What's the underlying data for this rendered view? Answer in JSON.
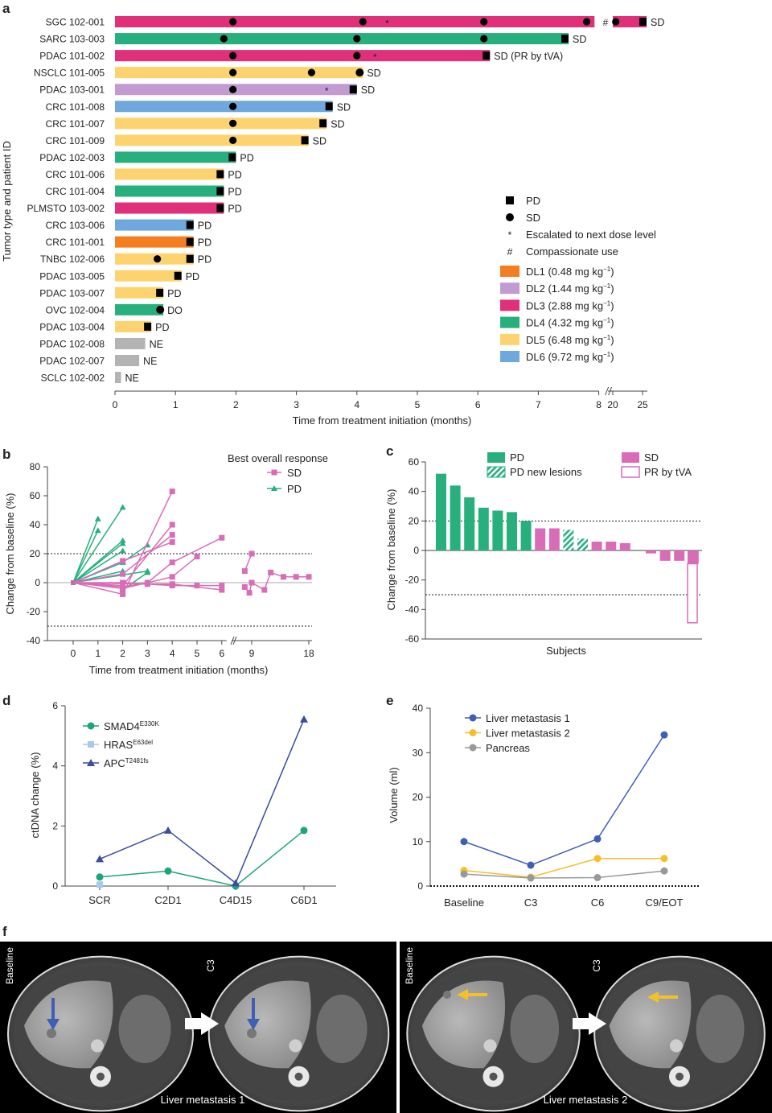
{
  "colors": {
    "dl1": "#f47f20",
    "dl2": "#c39bd3",
    "dl3": "#e0307a",
    "dl4": "#27b07d",
    "dl5": "#fdd36f",
    "dl6": "#6fa8dc",
    "ne": "#b3b3b3",
    "pd": "#27b07d",
    "sd": "#d96cb7",
    "navy": "#3a4da0",
    "teal": "#1aa67b",
    "lightblue": "#a8c8ee",
    "liverblue": "#3f5fb5",
    "liveryellow": "#f5bf2a",
    "grey": "#999999"
  },
  "panels": {
    "a": "a",
    "b": "b",
    "c": "c",
    "d": "d",
    "e": "e",
    "f": "f"
  },
  "chart_data": [
    {
      "panel": "a",
      "type": "bar",
      "orientation": "horizontal",
      "ylabel": "Tumor type and patient ID",
      "xlabel": "Time from treatment initiation (months)",
      "xticks": [
        "0",
        "1",
        "2",
        "3",
        "4",
        "5",
        "6",
        "7",
        "8",
        "20",
        "25"
      ],
      "patients": [
        {
          "id": "SGC 102-001",
          "dose": "dl3",
          "end": 25,
          "broken": true,
          "response": "SD",
          "marker": "square",
          "dots": [
            1.95,
            4.1,
            6.1,
            7.8,
            20.5
          ],
          "stars": [
            4.5
          ],
          "hash": true
        },
        {
          "id": "SARC 103-003",
          "dose": "dl4",
          "end": 7.5,
          "response": "SD",
          "marker": "square",
          "dots": [
            1.8,
            4.0,
            6.1
          ],
          "stars": []
        },
        {
          "id": "PDAC 101-002",
          "dose": "dl3",
          "end": 6.2,
          "response": "SD (PR by tVA)",
          "marker": "square",
          "dots": [
            1.95,
            4.0
          ],
          "stars": [
            4.3
          ]
        },
        {
          "id": "NSCLC 101-005",
          "dose": "dl5",
          "end": 4.1,
          "response": "SD",
          "marker": "circle",
          "dots": [
            1.95,
            3.25
          ],
          "stars": []
        },
        {
          "id": "PDAC 103-001",
          "dose": "dl2",
          "end": 4.0,
          "response": "SD",
          "marker": "square",
          "dots": [
            1.95
          ],
          "stars": [
            3.5
          ]
        },
        {
          "id": "CRC 101-008",
          "dose": "dl6",
          "end": 3.6,
          "response": "SD",
          "marker": "square",
          "dots": [
            1.95
          ],
          "stars": []
        },
        {
          "id": "CRC 101-007",
          "dose": "dl5",
          "end": 3.5,
          "response": "SD",
          "marker": "square",
          "dots": [
            1.95
          ],
          "stars": []
        },
        {
          "id": "CRC 101-009",
          "dose": "dl5",
          "end": 3.2,
          "response": "SD",
          "marker": "square",
          "dots": [
            1.95
          ],
          "stars": []
        },
        {
          "id": "PDAC 102-003",
          "dose": "dl4",
          "end": 2.0,
          "response": "PD",
          "marker": "square",
          "dots": [],
          "stars": []
        },
        {
          "id": "CRC 101-006",
          "dose": "dl5",
          "end": 1.8,
          "response": "PD",
          "marker": "square",
          "dots": [],
          "stars": []
        },
        {
          "id": "CRC 101-004",
          "dose": "dl4",
          "end": 1.8,
          "response": "PD",
          "marker": "square",
          "dots": [],
          "stars": []
        },
        {
          "id": "PLMSTO 103-002",
          "dose": "dl3",
          "end": 1.8,
          "response": "PD",
          "marker": "square",
          "dots": [],
          "stars": []
        },
        {
          "id": "CRC 103-006",
          "dose": "dl6",
          "end": 1.3,
          "response": "PD",
          "marker": "square",
          "dots": [],
          "stars": []
        },
        {
          "id": "CRC 101-001",
          "dose": "dl1",
          "end": 1.3,
          "response": "PD",
          "marker": "square",
          "dots": [],
          "stars": []
        },
        {
          "id": "TNBC 102-006",
          "dose": "dl5",
          "end": 1.3,
          "response": "PD",
          "marker": "square",
          "dots": [
            0.7
          ],
          "stars": []
        },
        {
          "id": "PDAC 103-005",
          "dose": "dl5",
          "end": 1.1,
          "response": "PD",
          "marker": "square",
          "dots": [],
          "stars": []
        },
        {
          "id": "PDAC 103-007",
          "dose": "dl5",
          "end": 0.8,
          "response": "PD",
          "marker": "square",
          "dots": [],
          "stars": []
        },
        {
          "id": "OVC 102-004",
          "dose": "dl4",
          "end": 0.8,
          "response": "DO",
          "marker": "circle",
          "dots": [],
          "stars": []
        },
        {
          "id": "PDAC 103-004",
          "dose": "dl5",
          "end": 0.6,
          "response": "PD",
          "marker": "square",
          "dots": [],
          "stars": []
        },
        {
          "id": "PDAC 102-008",
          "dose": "ne",
          "end": 0.5,
          "response": "NE",
          "marker": "none",
          "dots": [],
          "stars": []
        },
        {
          "id": "PDAC 102-007",
          "dose": "ne",
          "end": 0.4,
          "response": "NE",
          "marker": "none",
          "dots": [],
          "stars": []
        },
        {
          "id": "SCLC 102-002",
          "dose": "ne",
          "end": 0.1,
          "response": "NE",
          "marker": "none",
          "dots": [],
          "stars": []
        }
      ],
      "legend": {
        "symbols": [
          {
            "symbol": "square",
            "label": "PD"
          },
          {
            "symbol": "circle",
            "label": "SD"
          },
          {
            "symbol": "*",
            "label": "Escalated to next dose level"
          },
          {
            "symbol": "#",
            "label": "Compassionate use"
          }
        ],
        "doses": [
          {
            "key": "dl1",
            "label": "DL1 (0.48 mg kg",
            "unit_exp": "−1",
            ")": ")"
          },
          {
            "key": "dl2",
            "label": "DL2 (1.44 mg kg",
            "unit_exp": "−1"
          },
          {
            "key": "dl3",
            "label": "DL3 (2.88 mg kg",
            "unit_exp": "−1"
          },
          {
            "key": "dl4",
            "label": "DL4 (4.32 mg kg",
            "unit_exp": "−1"
          },
          {
            "key": "dl5",
            "label": "DL5 (6.48 mg kg",
            "unit_exp": "−1"
          },
          {
            "key": "dl6",
            "label": "DL6 (9.72 mg kg",
            "unit_exp": "−1"
          }
        ]
      }
    },
    {
      "panel": "b",
      "type": "line",
      "ylabel": "Change from baseline (%)",
      "xlabel": "Time from treatment initiation (months)",
      "legend_title": "Best overall response",
      "yticks": [
        -40,
        -20,
        0,
        20,
        40,
        60,
        80
      ],
      "xticks": [
        "0",
        "1",
        "2",
        "3",
        "4",
        "5",
        "6",
        "9",
        "18"
      ],
      "thresholds": [
        20,
        -30
      ],
      "series": [
        {
          "name": "PD",
          "group": "PD",
          "points": [
            [
              0,
              0
            ],
            [
              1,
              44
            ]
          ]
        },
        {
          "name": "PD",
          "group": "PD",
          "points": [
            [
              0,
              0
            ],
            [
              1,
              36
            ]
          ]
        },
        {
          "name": "PD",
          "group": "PD",
          "points": [
            [
              0,
              0
            ],
            [
              2,
              52
            ]
          ]
        },
        {
          "name": "PD",
          "group": "PD",
          "points": [
            [
              0,
              0
            ],
            [
              2,
              29
            ]
          ]
        },
        {
          "name": "PD",
          "group": "PD",
          "points": [
            [
              0,
              0
            ],
            [
              2,
              27
            ]
          ]
        },
        {
          "name": "PD",
          "group": "PD",
          "points": [
            [
              0,
              0
            ],
            [
              2,
              22
            ]
          ]
        },
        {
          "name": "PD",
          "group": "PD",
          "points": [
            [
              0,
              0
            ],
            [
              2,
              14
            ]
          ]
        },
        {
          "name": "PD",
          "group": "PD",
          "points": [
            [
              0,
              0
            ],
            [
              2,
              8
            ]
          ]
        },
        {
          "name": "PD",
          "group": "PD",
          "points": [
            [
              0,
              0
            ],
            [
              3,
              8
            ]
          ]
        },
        {
          "name": "PD",
          "group": "PD",
          "points": [
            [
              2,
              14
            ],
            [
              3,
              26
            ]
          ]
        },
        {
          "name": "PD",
          "group": "PD",
          "points": [
            [
              2,
              -5
            ],
            [
              3,
              7
            ]
          ]
        },
        {
          "name": "SD",
          "group": "SD",
          "points": [
            [
              0,
              0
            ],
            [
              2,
              -8
            ],
            [
              4,
              63
            ]
          ]
        },
        {
          "name": "SD",
          "group": "SD",
          "points": [
            [
              0,
              0
            ],
            [
              2,
              -2
            ],
            [
              4,
              40
            ]
          ]
        },
        {
          "name": "SD",
          "group": "SD",
          "points": [
            [
              0,
              0
            ],
            [
              2,
              6
            ],
            [
              4,
              33
            ]
          ]
        },
        {
          "name": "SD",
          "group": "SD",
          "points": [
            [
              0,
              0
            ],
            [
              2,
              15
            ],
            [
              4,
              28
            ]
          ]
        },
        {
          "name": "SD",
          "group": "SD",
          "points": [
            [
              0,
              0
            ],
            [
              2,
              -3
            ],
            [
              3,
              0
            ],
            [
              4,
              14
            ],
            [
              6,
              31
            ]
          ]
        },
        {
          "name": "SD",
          "group": "SD",
          "points": [
            [
              0,
              0
            ],
            [
              2,
              0
            ],
            [
              4,
              -2
            ],
            [
              5,
              -2
            ],
            [
              6,
              -2
            ]
          ]
        },
        {
          "name": "SD",
          "group": "SD",
          "points": [
            [
              0,
              0
            ],
            [
              2,
              -4
            ],
            [
              4,
              4
            ],
            [
              5,
              18
            ]
          ]
        },
        {
          "name": "SD",
          "group": "SD",
          "points": [
            [
              0,
              0
            ],
            [
              3,
              -1
            ],
            [
              4,
              -1
            ],
            [
              6,
              -5
            ]
          ]
        },
        {
          "name": "SD",
          "group": "SD",
          "points": [
            [
              8.7,
              8
            ],
            [
              9,
              20
            ]
          ]
        },
        {
          "name": "SD",
          "group": "SD",
          "points": [
            [
              8.7,
              -3
            ],
            [
              8.9,
              -7
            ],
            [
              9,
              0
            ],
            [
              11,
              -5
            ],
            [
              12,
              7
            ],
            [
              14,
              4
            ],
            [
              16,
              4
            ],
            [
              18,
              4
            ]
          ]
        }
      ]
    },
    {
      "panel": "c",
      "type": "bar",
      "ylabel": "Change from baseline (%)",
      "xlabel": "Subjects",
      "yticks": [
        -60,
        -40,
        -20,
        0,
        20,
        40,
        60
      ],
      "thresholds": [
        20,
        -30
      ],
      "legend": [
        "PD",
        "PD new lesions",
        "SD",
        "PR by tVA"
      ],
      "values": [
        52,
        44,
        36,
        29,
        27,
        26,
        20,
        15,
        15,
        14,
        8,
        6,
        6,
        5,
        -2,
        -7,
        -7,
        -9,
        -49
      ],
      "categories": [
        "PD",
        "PD",
        "PD",
        "PD",
        "PD",
        "PD",
        "PD",
        "SD",
        "SD",
        "PD new lesions",
        "PD new lesions",
        "SD",
        "SD",
        "SD",
        "SD",
        "SD",
        "SD",
        "SD",
        "PR by tVA"
      ]
    },
    {
      "panel": "d",
      "type": "line",
      "ylabel": "ctDNA change (%)",
      "categories": [
        "SCR",
        "C2D1",
        "C4D15",
        "C6D1"
      ],
      "yticks": [
        0,
        2,
        4,
        6
      ],
      "series": [
        {
          "name": "SMAD4",
          "sup": "E330K",
          "marker": "circle",
          "color": "teal",
          "values": [
            0.3,
            0.5,
            0.0,
            1.85
          ]
        },
        {
          "name": "HRAS",
          "sup": "E63del",
          "marker": "square",
          "color": "lightblue",
          "values": [
            0.05,
            null,
            null,
            null
          ]
        },
        {
          "name": "APC",
          "sup": "T2481fs",
          "marker": "triangle",
          "color": "navy",
          "values": [
            0.9,
            1.85,
            0.1,
            5.55
          ]
        }
      ]
    },
    {
      "panel": "e",
      "type": "line",
      "ylabel": "Volume (ml)",
      "categories": [
        "Baseline",
        "C3",
        "C6",
        "C9/EOT"
      ],
      "yticks": [
        0,
        10,
        20,
        30,
        40
      ],
      "series": [
        {
          "name": "Liver metastasis 1",
          "color": "liverblue",
          "values": [
            10,
            4.7,
            10.6,
            34
          ]
        },
        {
          "name": "Liver metastasis 2",
          "color": "liveryellow",
          "values": [
            3.5,
            2,
            6.2,
            6.2
          ]
        },
        {
          "name": "Pancreas",
          "color": "grey",
          "values": [
            2.7,
            1.8,
            1.9,
            3.4
          ]
        }
      ]
    }
  ],
  "panel_f": {
    "scans": [
      {
        "label": "Baseline"
      },
      {
        "label": "C3"
      },
      {
        "label": "Baseline"
      },
      {
        "label": "C3"
      }
    ],
    "captions": [
      "Liver metastasis 1",
      "Liver metastasis 2"
    ]
  }
}
